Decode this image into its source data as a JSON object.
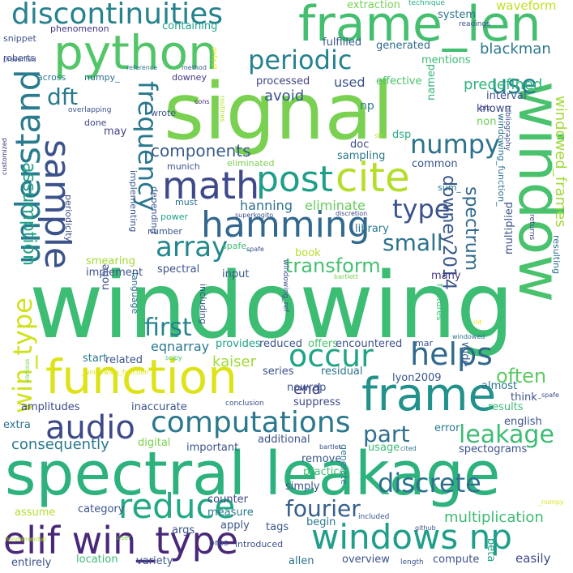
{
  "words": [
    {
      "text": "windowing",
      "color": "#3dbc74"
    },
    {
      "text": "signal",
      "color": "#7ad151"
    },
    {
      "text": "spectral leakage",
      "color": "#2db27d"
    },
    {
      "text": "window",
      "color": "#4ac16d"
    },
    {
      "text": "frame_len",
      "color": "#44bf70"
    },
    {
      "text": "python",
      "color": "#52c569"
    },
    {
      "text": "function",
      "color": "#dde318"
    },
    {
      "text": "frame",
      "color": "#21918c"
    },
    {
      "text": "elif win_type",
      "color": "#482878"
    },
    {
      "text": "windows np",
      "color": "#1f9e89"
    },
    {
      "text": "discontinuities",
      "color": "#26828e"
    },
    {
      "text": "math",
      "color": "#3e4989"
    },
    {
      "text": "hamming",
      "color": "#31688e"
    },
    {
      "text": "sample",
      "color": "#3b528b"
    },
    {
      "text": "cite",
      "color": "#b5de2b"
    },
    {
      "text": "post",
      "color": "#1f9e89"
    },
    {
      "text": "periodic",
      "color": "#26828e"
    },
    {
      "text": "understand",
      "color": "#287c8e"
    },
    {
      "text": "frequency",
      "color": "#2a788e"
    },
    {
      "text": "reduce",
      "color": "#22a884"
    },
    {
      "text": "computations",
      "color": "#2a788e"
    },
    {
      "text": "audio",
      "color": "#3e4989"
    },
    {
      "text": "array",
      "color": "#23888e"
    },
    {
      "text": "occur",
      "color": "#20a486"
    },
    {
      "text": "helps",
      "color": "#30698e"
    },
    {
      "text": "win_type",
      "color": "#d0e11c"
    },
    {
      "text": "numpy",
      "color": "#2c728e"
    },
    {
      "text": "use",
      "color": "#25848e"
    },
    {
      "text": "type",
      "color": "#3b528b"
    },
    {
      "text": "transform",
      "color": "#46c06f"
    },
    {
      "text": "fourier",
      "color": "#355f8d"
    },
    {
      "text": "discrete",
      "color": "#2d708e"
    },
    {
      "text": "leakage",
      "color": "#3dbc74"
    },
    {
      "text": "first",
      "color": "#25848e"
    },
    {
      "text": "often",
      "color": "#5ec962"
    },
    {
      "text": "part",
      "color": "#2e6f8e"
    },
    {
      "text": "dft",
      "color": "#2a788e"
    },
    {
      "text": "components",
      "color": "#38598c"
    },
    {
      "text": "assumption",
      "color": "#1fa287"
    },
    {
      "text": "small",
      "color": "#2c738e"
    },
    {
      "text": "downey2014",
      "color": "#39568c"
    },
    {
      "text": "spectrum",
      "color": "#31688e"
    },
    {
      "text": "blackman",
      "color": "#2a788e"
    },
    {
      "text": "predefined",
      "color": "#2fb47c"
    },
    {
      "text": "windowed_frames",
      "color": "#a2da37"
    },
    {
      "text": "consequently",
      "color": "#2a788e"
    },
    {
      "text": "multiplication",
      "color": "#3dbc74"
    },
    {
      "text": "kaiser",
      "color": "#a0da39"
    },
    {
      "text": "eliminate",
      "color": "#66cb5d"
    },
    {
      "text": "hanning",
      "color": "#2d718e"
    },
    {
      "text": "avoid",
      "color": "#39568c"
    },
    {
      "text": "end",
      "color": "#414487"
    },
    {
      "text": "eqnarray",
      "color": "#2a788e"
    },
    {
      "text": "used",
      "color": "#3b528b"
    },
    {
      "text": "extraction",
      "color": "#75d054"
    },
    {
      "text": "waveform",
      "color": "#c2df23"
    },
    {
      "text": "system",
      "color": "#2c728e"
    },
    {
      "text": "technique",
      "color": "#27ad81"
    },
    {
      "text": "containing",
      "color": "#1fa187"
    },
    {
      "text": "fulfilled",
      "color": "#38588c"
    },
    {
      "text": "generated",
      "color": "#2e6e8e"
    },
    {
      "text": "mentions",
      "color": "#3cbb75"
    },
    {
      "text": "processed",
      "color": "#414487"
    },
    {
      "text": "effective",
      "color": "#4ac16d"
    },
    {
      "text": "np",
      "color": "#2a788e"
    },
    {
      "text": "named",
      "color": "#34b679"
    },
    {
      "text": "known",
      "color": "#3e4989"
    },
    {
      "text": "non",
      "color": "#6ece58"
    },
    {
      "text": "interval",
      "color": "#3b528b"
    },
    {
      "text": "bib",
      "color": "#414487"
    },
    {
      "text": "bibliography",
      "color": "#3b528b"
    },
    {
      "text": "windowing_function_",
      "color": "#2c728e"
    },
    {
      "text": "phenomenon",
      "color": "#463480"
    },
    {
      "text": "snippet",
      "color": "#3b528b"
    },
    {
      "text": "roberts",
      "color": "#3e4a89"
    },
    {
      "text": "presented",
      "color": "#39568c"
    },
    {
      "text": "across",
      "color": "#2a788e"
    },
    {
      "text": "numpy_",
      "color": "#2e6e8e"
    },
    {
      "text": "overlapping",
      "color": "#3b528b"
    },
    {
      "text": "done",
      "color": "#3e4989"
    },
    {
      "text": "downey",
      "color": "#453882"
    },
    {
      "text": "method",
      "color": "#355f8d"
    },
    {
      "text": "reference",
      "color": "#2c728e"
    },
    {
      "text": "cons",
      "color": "#482878"
    },
    {
      "text": "routines",
      "color": "#b5de2b"
    },
    {
      "text": "default",
      "color": "#e5e419"
    },
    {
      "text": "readings",
      "color": "#3b528b"
    },
    {
      "text": "may",
      "color": "#414487"
    },
    {
      "text": "wrote",
      "color": "#39568c"
    },
    {
      "text": "munich",
      "color": "#3b528b"
    },
    {
      "text": "eliminated",
      "color": "#7ad151"
    },
    {
      "text": "sampling",
      "color": "#2a788e"
    },
    {
      "text": "dsp",
      "color": "#27ad81"
    },
    {
      "text": "str",
      "color": "#b5de2b"
    },
    {
      "text": "common",
      "color": "#39568c"
    },
    {
      "text": "sum_",
      "color": "#2a788e"
    },
    {
      "text": "doc",
      "color": "#3e4989"
    },
    {
      "text": "periodicity",
      "color": "#3e4989"
    },
    {
      "text": "implementing",
      "color": "#39568c"
    },
    {
      "text": "depending",
      "color": "#3b528b"
    },
    {
      "text": "must",
      "color": "#2c728e"
    },
    {
      "text": "power",
      "color": "#1fa187"
    },
    {
      "text": "number",
      "color": "#39568c"
    },
    {
      "text": "library",
      "color": "#2a788e"
    },
    {
      "text": "superkogito",
      "color": "#3b528b"
    },
    {
      "text": "discretion",
      "color": "#404588"
    },
    {
      "text": "spafe_",
      "color": "#3dbc74"
    },
    {
      "text": "book",
      "color": "#b5de2b"
    },
    {
      "text": "spafe",
      "color": "#3b528b"
    },
    {
      "text": "smearing",
      "color": "#a2da37"
    },
    {
      "text": "implement",
      "color": "#3b528b"
    },
    {
      "text": "spectral",
      "color": "#3b528b"
    },
    {
      "text": "input",
      "color": "#39568c"
    },
    {
      "text": "windowing_ref",
      "color": "#3b528b"
    },
    {
      "text": "bartlett",
      "color": "#7ad151"
    },
    {
      "text": "many",
      "color": "#453882"
    },
    {
      "text": "multiplied",
      "color": "#3b528b"
    },
    {
      "text": "features",
      "color": "#3dbc74"
    },
    {
      "text": "resulting",
      "color": "#2c728e"
    },
    {
      "text": "returns",
      "color": "#414487"
    },
    {
      "text": "customized",
      "color": "#463480"
    },
    {
      "text": "none",
      "color": "#3b528b"
    },
    {
      "text": "language",
      "color": "#2e6e8e"
    },
    {
      "text": "including",
      "color": "#3b528b"
    },
    {
      "text": "provides",
      "color": "#1fa187"
    },
    {
      "text": "reduced",
      "color": "#3b528b"
    },
    {
      "text": "offers",
      "color": "#4ac16d"
    },
    {
      "text": "encountered",
      "color": "#3b528b"
    },
    {
      "text": "int",
      "color": "#e5e419"
    },
    {
      "text": "windowed",
      "color": "#2c728e"
    },
    {
      "text": "wide",
      "color": "#355f8d"
    },
    {
      "text": "mar",
      "color": "#3b528b"
    },
    {
      "text": "start",
      "color": "#2a788e"
    },
    {
      "text": "related",
      "color": "#3b528b"
    },
    {
      "text": "scipy",
      "color": "#3dbc74"
    },
    {
      "text": "series",
      "color": "#3b528b"
    },
    {
      "text": "residual",
      "color": "#2c728e"
    },
    {
      "text": "lyon2009",
      "color": "#39568c"
    },
    {
      "text": "various",
      "color": "#7ad151"
    },
    {
      "text": "_windowing_function",
      "color": "#dde318"
    },
    {
      "text": "nowrap",
      "color": "#3b528b"
    },
    {
      "text": "almost",
      "color": "#2c728e"
    },
    {
      "text": "think",
      "color": "#3b528b"
    },
    {
      "text": "_spafe",
      "color": "#3e4989"
    },
    {
      "text": "amplitudes",
      "color": "#3e4989"
    },
    {
      "text": "inaccurate",
      "color": "#39568c"
    },
    {
      "text": "conclusion",
      "color": "#3b528b"
    },
    {
      "text": "suppress",
      "color": "#3e4989"
    },
    {
      "text": "results",
      "color": "#3dbc74"
    },
    {
      "text": "extra",
      "color": "#2c728e"
    },
    {
      "text": "error",
      "color": "#2a788e"
    },
    {
      "text": "english",
      "color": "#3b528b"
    },
    {
      "text": "digital",
      "color": "#7ad151"
    },
    {
      "text": "important",
      "color": "#3b528b"
    },
    {
      "text": "additional",
      "color": "#3b528b"
    },
    {
      "text": "bartlet",
      "color": "#3b528b"
    },
    {
      "text": "usage",
      "color": "#3dbc74"
    },
    {
      "text": "cited",
      "color": "#2c728e"
    },
    {
      "text": "spectograms",
      "color": "#3b528b"
    },
    {
      "text": "remove",
      "color": "#39568c"
    },
    {
      "text": "generate",
      "color": "#2a788e"
    },
    {
      "text": "practice",
      "color": "#3dbc74"
    },
    {
      "text": "simply",
      "color": "#3b528b"
    },
    {
      "text": "assume",
      "color": "#b5de2b"
    },
    {
      "text": "category",
      "color": "#3b528b"
    },
    {
      "text": "counter",
      "color": "#414487"
    },
    {
      "text": "measure",
      "color": "#2a788e"
    },
    {
      "text": "included",
      "color": "#39568c"
    },
    {
      "text": "_numpy",
      "color": "#dde318"
    },
    {
      "text": "args",
      "color": "#3b528b"
    },
    {
      "text": "apply",
      "color": "#39568c"
    },
    {
      "text": "tags",
      "color": "#3b528b"
    },
    {
      "text": "begin",
      "color": "#2a788e"
    },
    {
      "text": "beta",
      "color": "#1fa187"
    },
    {
      "text": "github",
      "color": "#3b528b"
    },
    {
      "text": "fundamental",
      "color": "#b5de2b"
    },
    {
      "text": "user",
      "color": "#7ad151"
    },
    {
      "text": "pros",
      "color": "#3b528b"
    },
    {
      "text": "introduced",
      "color": "#3b528b"
    },
    {
      "text": "entirely",
      "color": "#3b528b"
    },
    {
      "text": "location",
      "color": "#3dbc74"
    },
    {
      "text": "variety",
      "color": "#3b528b"
    },
    {
      "text": "allen",
      "color": "#2c728e"
    },
    {
      "text": "overview",
      "color": "#3b528b"
    },
    {
      "text": "length",
      "color": "#39568c"
    },
    {
      "text": "compute",
      "color": "#3b528b"
    },
    {
      "text": "easily",
      "color": "#3e4989"
    }
  ]
}
